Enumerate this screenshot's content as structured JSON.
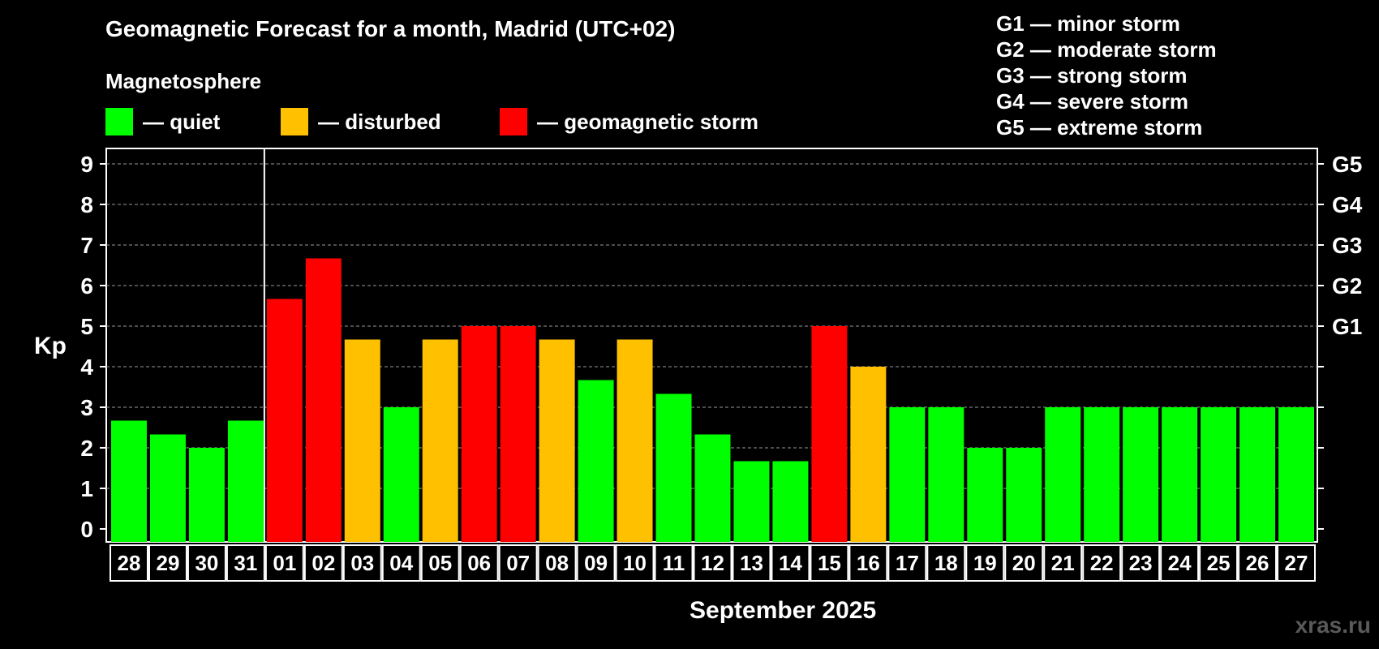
{
  "title": "Geomagnetic Forecast for a month, Madrid (UTC+02)",
  "subtitle": "Magnetosphere",
  "legend": [
    {
      "label": "— quiet",
      "color": "#00ff00"
    },
    {
      "label": "— disturbed",
      "color": "#ffc000"
    },
    {
      "label": "— geomagnetic storm",
      "color": "#ff0000"
    }
  ],
  "g_levels": [
    "G1 — minor storm",
    "G2 — moderate storm",
    "G3 — strong storm",
    "G4 — severe storm",
    "G5 — extreme storm"
  ],
  "watermark": "xras.ru",
  "chart_data": {
    "type": "bar",
    "title": "Geomagnetic Forecast for a month, Madrid (UTC+02)",
    "xlabel": "September 2025",
    "ylabel": "Kp",
    "ylim": [
      0,
      9
    ],
    "yticks": [
      0,
      1,
      2,
      3,
      4,
      5,
      6,
      7,
      8,
      9
    ],
    "right_axis": [
      {
        "value": 5,
        "label": "G1"
      },
      {
        "value": 6,
        "label": "G2"
      },
      {
        "value": 7,
        "label": "G3"
      },
      {
        "value": 8,
        "label": "G4"
      },
      {
        "value": 9,
        "label": "G5"
      }
    ],
    "grid": true,
    "month_divider_after_index": 3,
    "categories": [
      "28",
      "29",
      "30",
      "31",
      "01",
      "02",
      "03",
      "04",
      "05",
      "06",
      "07",
      "08",
      "09",
      "10",
      "11",
      "12",
      "13",
      "14",
      "15",
      "16",
      "17",
      "18",
      "19",
      "20",
      "21",
      "22",
      "23",
      "24",
      "25",
      "26",
      "27"
    ],
    "values": [
      2.67,
      2.33,
      2,
      2.67,
      5.67,
      6.67,
      4.67,
      3,
      4.67,
      5,
      5,
      4.67,
      3.67,
      4.67,
      3.33,
      2.33,
      1.67,
      1.67,
      5,
      4,
      3,
      3,
      2,
      2,
      3,
      3,
      3,
      3,
      3,
      3,
      3
    ],
    "levels": [
      "quiet",
      "quiet",
      "quiet",
      "quiet",
      "storm",
      "storm",
      "disturbed",
      "quiet",
      "disturbed",
      "storm",
      "storm",
      "disturbed",
      "quiet",
      "disturbed",
      "quiet",
      "quiet",
      "quiet",
      "quiet",
      "storm",
      "disturbed",
      "quiet",
      "quiet",
      "quiet",
      "quiet",
      "quiet",
      "quiet",
      "quiet",
      "quiet",
      "quiet",
      "quiet",
      "quiet"
    ],
    "level_colors": {
      "quiet": "#00ff00",
      "disturbed": "#ffc000",
      "storm": "#ff0000"
    }
  }
}
